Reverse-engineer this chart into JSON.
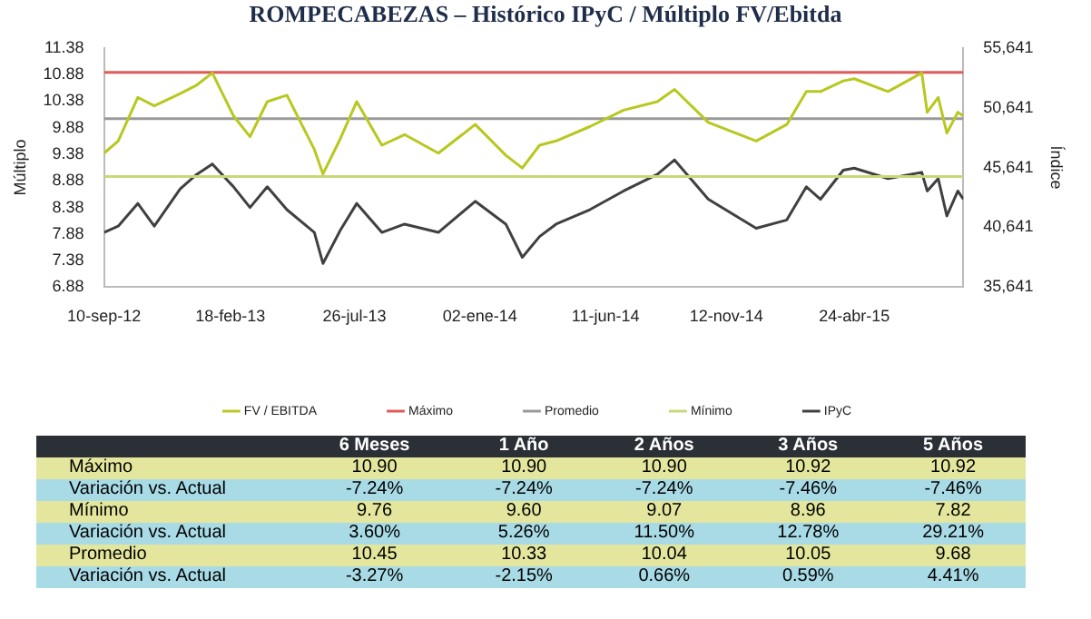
{
  "chart_data": [
    {
      "type": "line",
      "title": "ROMPECABEZAS – Histórico IPyC / Múltiplo FV/Ebitda",
      "ylabel": "Múltiplo",
      "y2label": "Índice",
      "x": [
        "2012-09-10",
        "2012-09-28",
        "2012-10-23",
        "2012-11-13",
        "2012-12-16",
        "2013-01-06",
        "2013-01-26",
        "2013-02-22",
        "2013-03-15",
        "2013-04-06",
        "2013-05-01",
        "2013-06-05",
        "2013-06-16",
        "2013-07-08",
        "2013-07-29",
        "2013-08-30",
        "2013-09-28",
        "2013-11-10",
        "2013-12-27",
        "2014-02-04",
        "2014-02-25",
        "2014-03-19",
        "2014-04-09",
        "2014-05-22",
        "2014-07-04",
        "2014-08-16",
        "2014-09-07",
        "2014-10-20",
        "2014-12-20",
        "2015-01-28",
        "2015-02-22",
        "2015-03-12",
        "2015-04-10",
        "2015-04-24",
        "2015-06-06",
        "2015-07-19",
        "2015-07-26",
        "2015-08-09",
        "2015-08-20",
        "2015-09-03",
        "2015-09-10"
      ],
      "series": [
        {
          "name": "FV / EBITDA",
          "color": "#b8c820",
          "values": [
            9.4,
            9.63,
            10.45,
            10.29,
            10.52,
            10.68,
            10.91,
            10.1,
            9.71,
            10.37,
            10.49,
            9.47,
            9.01,
            9.67,
            10.37,
            9.55,
            9.75,
            9.4,
            9.94,
            9.36,
            9.12,
            9.55,
            9.63,
            9.9,
            10.21,
            10.37,
            10.6,
            9.98,
            9.63,
            9.94,
            10.56,
            10.56,
            10.76,
            10.8,
            10.56,
            10.91,
            10.17,
            10.45,
            9.78,
            10.17,
            10.1
          ]
        },
        {
          "name": "Máximo",
          "color": "#e05a5a",
          "x": [
            "2012-09-10",
            "2015-09-10"
          ],
          "values": [
            10.92,
            10.92
          ]
        },
        {
          "name": "Promedio",
          "color": "#9a9a9a",
          "x": [
            "2012-09-10",
            "2015-09-10"
          ],
          "values": [
            10.05,
            10.05
          ]
        },
        {
          "name": "Mínimo",
          "color": "#c8d878",
          "x": [
            "2012-09-10",
            "2015-09-10"
          ],
          "values": [
            8.96,
            8.96
          ]
        },
        {
          "name": "IPyC",
          "color": "#404040",
          "axis": "y2",
          "values": [
            40220,
            40740,
            42640,
            40740,
            43860,
            45070,
            45940,
            44030,
            42300,
            44030,
            42120,
            40220,
            37620,
            40390,
            42640,
            40220,
            40910,
            40220,
            42820,
            40910,
            38140,
            39870,
            40910,
            42120,
            43680,
            45070,
            46280,
            42990,
            40560,
            41260,
            44030,
            42990,
            45420,
            45590,
            44720,
            45240,
            43680,
            44720,
            41600,
            43680,
            42990
          ]
        }
      ],
      "xlim": [
        "2012-09-10",
        "2015-09-10"
      ],
      "xticks": [
        {
          "value": "2012-09-10",
          "label": "10-sep-12"
        },
        {
          "value": "2013-02-18",
          "label": "18-feb-13"
        },
        {
          "value": "2013-07-26",
          "label": "26-jul-13"
        },
        {
          "value": "2014-01-02",
          "label": "02-ene-14"
        },
        {
          "value": "2014-06-11",
          "label": "11-jun-14"
        },
        {
          "value": "2014-11-12",
          "label": "12-nov-14"
        },
        {
          "value": "2015-04-24",
          "label": "24-abr-15"
        }
      ],
      "ylim": [
        6.88,
        11.38
      ],
      "yticks": [
        6.88,
        7.38,
        7.88,
        8.38,
        8.88,
        9.38,
        9.88,
        10.38,
        10.88,
        11.38
      ],
      "y2lim": [
        35641,
        55641
      ],
      "y2ticks": [
        {
          "value": 35641,
          "label": "35,641"
        },
        {
          "value": 40641,
          "label": "40,641"
        },
        {
          "value": 45641,
          "label": "45,641"
        },
        {
          "value": 50641,
          "label": "50,641"
        },
        {
          "value": 55641,
          "label": "55,641"
        }
      ],
      "grid": false,
      "legend": "bottom",
      "marker": "none",
      "line_style": "solid"
    },
    {
      "type": "other",
      "categories": [
        "6 Meses",
        "1 Año",
        "2 Años",
        "3 Años",
        "5 Años"
      ],
      "y_categories": [
        "Máximo",
        "Variación vs. Actual",
        "Mínimo",
        "Variación vs. Actual",
        "Promedio",
        "Variación vs. Actual"
      ],
      "cell_labels": [
        [
          "10.90",
          "10.90",
          "10.90",
          "10.92",
          "10.92"
        ],
        [
          "-7.24%",
          "-7.24%",
          "-7.24%",
          "-7.46%",
          "-7.46%"
        ],
        [
          "9.76",
          "9.60",
          "9.07",
          "8.96",
          "7.82"
        ],
        [
          "3.60%",
          "5.26%",
          "11.50%",
          "12.78%",
          "29.21%"
        ],
        [
          "10.45",
          "10.33",
          "10.04",
          "10.05",
          "9.68"
        ],
        [
          "-3.27%",
          "-2.15%",
          "0.66%",
          "0.59%",
          "4.41%"
        ]
      ]
    }
  ]
}
